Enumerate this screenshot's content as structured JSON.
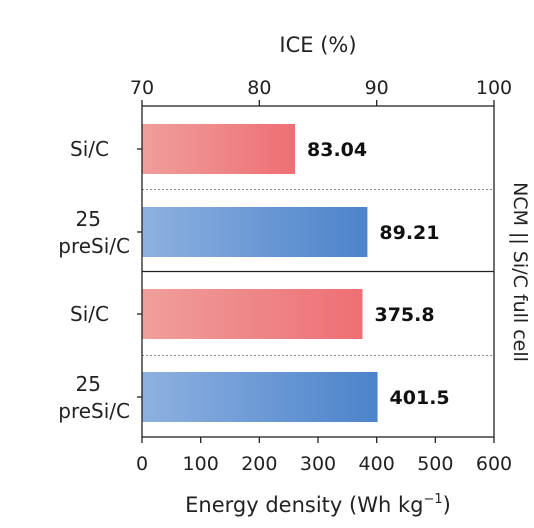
{
  "chart_data": {
    "type": "bar",
    "orientation": "horizontal",
    "side_label": "NCM || Si/C full cell",
    "colors": {
      "siC_light": "#ef9f9c",
      "siC_dark": "#ee6f74",
      "pre_light": "#8eb1e0",
      "pre_dark": "#4c83ca"
    },
    "panels": [
      {
        "axis": "top",
        "xlabel": "ICE (%)",
        "xlim": [
          70,
          100
        ],
        "ticks": [
          "70",
          "80",
          "90",
          "100"
        ],
        "categories": [
          {
            "line1": "Si/C",
            "line2": ""
          },
          {
            "line1": "25",
            "line2": "preSi/C"
          }
        ],
        "values": [
          83.04,
          89.21
        ],
        "value_labels": [
          "83.04",
          "89.21"
        ]
      },
      {
        "axis": "bottom",
        "xlabel": "Energy density (Wh kg",
        "xlabel_sup": "−1",
        "xlabel_end": ")",
        "xlim": [
          0,
          600
        ],
        "ticks": [
          "0",
          "100",
          "200",
          "300",
          "400",
          "500",
          "600"
        ],
        "categories": [
          {
            "line1": "Si/C",
            "line2": ""
          },
          {
            "line1": "25",
            "line2": "preSi/C"
          }
        ],
        "values": [
          375.8,
          401.5
        ],
        "value_labels": [
          "375.8",
          "401.5"
        ]
      }
    ]
  }
}
